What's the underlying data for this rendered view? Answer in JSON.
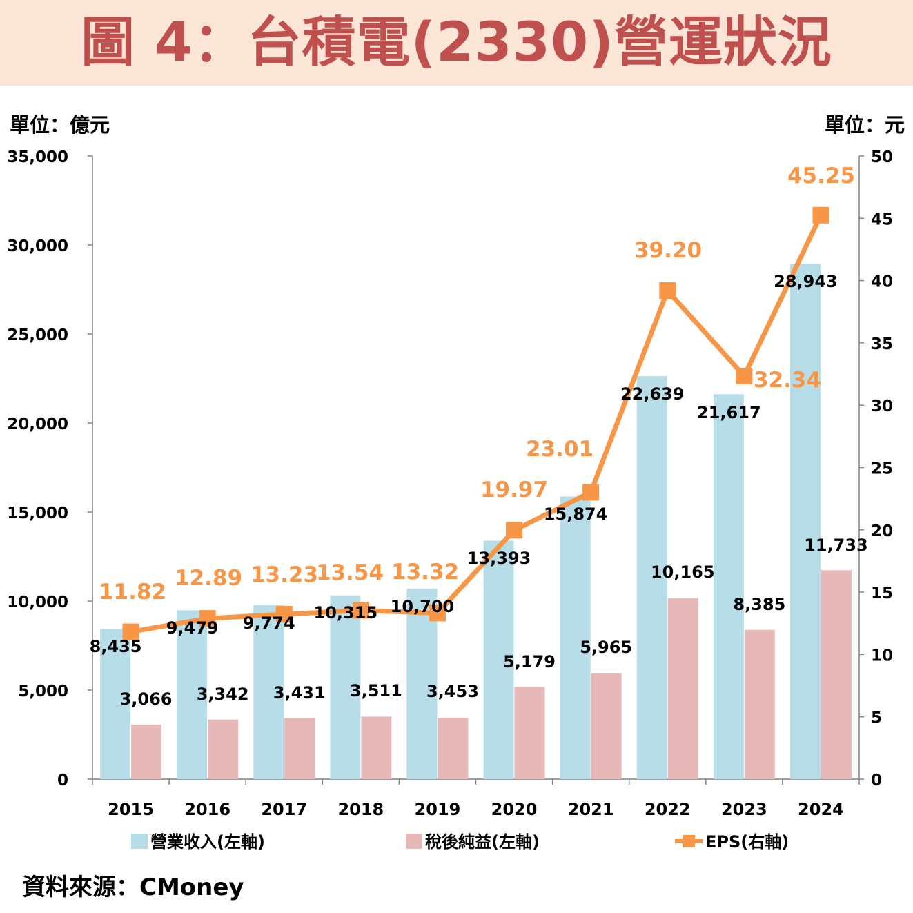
{
  "header": {
    "title": "圖 4：台積電(2330)營運狀況",
    "unit_left": "單位：億元",
    "unit_right": "單位：元"
  },
  "footer": {
    "source": "資料來源：CMoney"
  },
  "colors": {
    "title_band": "#fbe5d6",
    "title_text": "#c0504d",
    "revenue": "#b7dde8",
    "net_income": "#e6b9b8",
    "eps": "#f79646"
  },
  "chart_data": {
    "type": "bar",
    "categories": [
      "2015",
      "2016",
      "2017",
      "2018",
      "2019",
      "2020",
      "2021",
      "2022",
      "2023",
      "2024"
    ],
    "series": [
      {
        "name": "營業收入(左軸)",
        "axis": "left",
        "type": "bar",
        "values": [
          8435,
          9479,
          9774,
          10315,
          10700,
          13393,
          15874,
          22639,
          21617,
          28943
        ],
        "labels": [
          "8,435",
          "9,479",
          "9,774",
          "10,315",
          "10,700",
          "13,393",
          "15,874",
          "22,639",
          "21,617",
          "28,943"
        ]
      },
      {
        "name": "稅後純益(左軸)",
        "axis": "left",
        "type": "bar",
        "values": [
          3066,
          3342,
          3431,
          3511,
          3453,
          5179,
          5965,
          10165,
          8385,
          11733
        ],
        "labels": [
          "3,066",
          "3,342",
          "3,431",
          "3,511",
          "3,453",
          "5,179",
          "5,965",
          "10,165",
          "8,385",
          "11,733"
        ]
      },
      {
        "name": "EPS(右軸)",
        "axis": "right",
        "type": "line",
        "values": [
          11.82,
          12.89,
          13.23,
          13.54,
          13.32,
          19.97,
          23.01,
          39.2,
          32.34,
          45.25
        ],
        "labels": [
          "11.82",
          "12.89",
          "13.23",
          "13.54",
          "13.32",
          "19.97",
          "23.01",
          "39.20",
          "32.34",
          "45.25"
        ]
      }
    ],
    "y_left": {
      "lim": [
        0,
        35000
      ],
      "ticks": [
        0,
        5000,
        10000,
        15000,
        20000,
        25000,
        30000,
        35000
      ],
      "tick_labels": [
        "0",
        "5,000",
        "10,000",
        "15,000",
        "20,000",
        "25,000",
        "30,000",
        "35,000"
      ]
    },
    "y_right": {
      "lim": [
        0,
        50
      ],
      "ticks": [
        0,
        5,
        10,
        15,
        20,
        25,
        30,
        35,
        40,
        45,
        50
      ],
      "tick_labels": [
        "0",
        "5",
        "10",
        "15",
        "20",
        "25",
        "30",
        "35",
        "40",
        "45",
        "50"
      ]
    },
    "grid": false,
    "legend_position": "bottom"
  }
}
